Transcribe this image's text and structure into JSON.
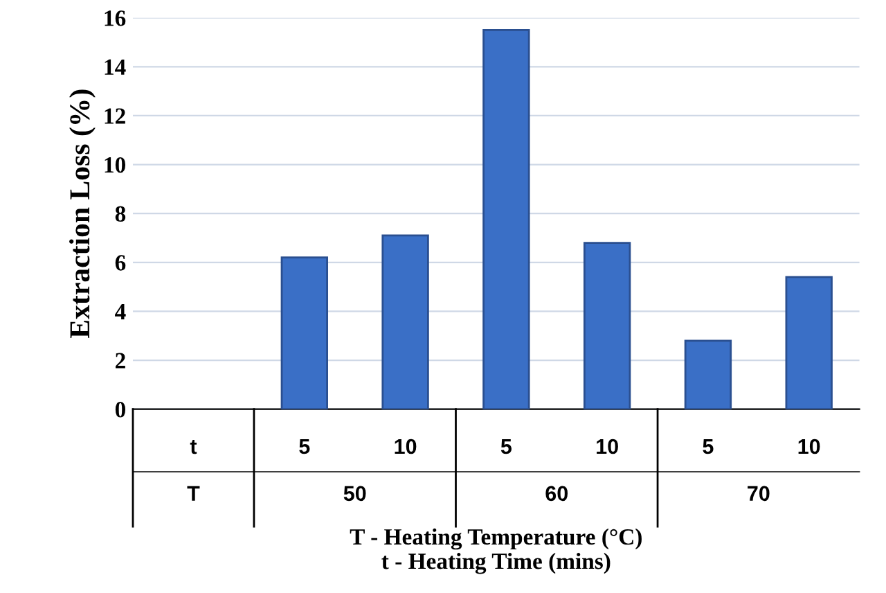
{
  "chart_data": {
    "type": "bar",
    "ylabel": "Extraction Loss (%)",
    "xlabel": "T - Heating Temperature (°C)\nt - Heating Time (mins)",
    "categories": [
      "5",
      "10",
      "5",
      "10",
      "5",
      "10"
    ],
    "values": [
      6.2,
      7.1,
      15.5,
      6.8,
      2.8,
      5.4
    ],
    "color": "#3a6fc6",
    "ylim": [
      0,
      16
    ],
    "yticks": [
      0,
      2,
      4,
      6,
      8,
      10,
      12,
      14,
      16
    ],
    "grid": "y",
    "annotations": [
      "t",
      "T",
      "50",
      "60",
      "70"
    ]
  }
}
